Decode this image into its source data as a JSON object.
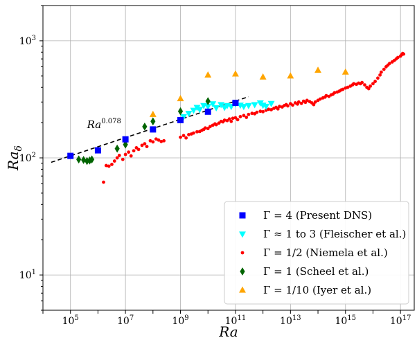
{
  "chart_data": {
    "type": "scatter",
    "xlabel": "Ra",
    "ylabel_main": "Ra",
    "ylabel_sub": "δ",
    "xscale": "log",
    "yscale": "log",
    "xlim": [
      10000.0,
      3.16e+17
    ],
    "ylim": [
      5,
      2000
    ],
    "grid": true,
    "legend_position": "bottom-right",
    "x_ticks": [
      {
        "base": "10",
        "exp": "5",
        "value": 100000.0
      },
      {
        "base": "10",
        "exp": "7",
        "value": 10000000.0
      },
      {
        "base": "10",
        "exp": "9",
        "value": 1000000000.0
      },
      {
        "base": "10",
        "exp": "11",
        "value": 100000000000.0
      },
      {
        "base": "10",
        "exp": "13",
        "value": 10000000000000.0
      },
      {
        "base": "10",
        "exp": "15",
        "value": 1000000000000000.0
      },
      {
        "base": "10",
        "exp": "17",
        "value": 1e+17
      }
    ],
    "y_ticks": [
      {
        "base": "10",
        "exp": "1",
        "value": 10
      },
      {
        "base": "10",
        "exp": "2",
        "value": 100
      },
      {
        "base": "10",
        "exp": "3",
        "value": 1000
      }
    ],
    "fit_line": {
      "label_base": "Ra",
      "label_exp": "0.078",
      "label_x": 400000.0,
      "label_y": 180,
      "x_start": 20000.0,
      "x_end": 300000000000.0,
      "slope": 0.078,
      "ref_x": 100000.0,
      "ref_y": 104,
      "color": "#000000"
    },
    "series": [
      {
        "name": "Γ = 4 (Present DNS)",
        "marker": "square",
        "color": "#0000ff",
        "points": [
          [
            100000.0,
            104
          ],
          [
            1000000.0,
            116
          ],
          [
            10000000.0,
            144
          ],
          [
            100000000.0,
            175
          ],
          [
            1000000000.0,
            210
          ],
          [
            10000000000.0,
            248
          ],
          [
            100000000000.0,
            295
          ]
        ]
      },
      {
        "name": "Γ ≈ 1 to 3 (Fleischer et al.)",
        "marker": "triangle-down",
        "color": "#00ffff",
        "points": [
          [
            1300000000.0,
            225
          ],
          [
            2000000000.0,
            240
          ],
          [
            3000000000.0,
            255
          ],
          [
            4000000000.0,
            270
          ],
          [
            5000000000.0,
            260
          ],
          [
            7000000000.0,
            280
          ],
          [
            10000000000.0,
            275
          ],
          [
            15000000000.0,
            290
          ],
          [
            20000000000.0,
            268
          ],
          [
            30000000000.0,
            285
          ],
          [
            40000000000.0,
            270
          ],
          [
            50000000000.0,
            280
          ],
          [
            70000000000.0,
            275
          ],
          [
            100000000000.0,
            290
          ],
          [
            150000000000.0,
            282
          ],
          [
            200000000000.0,
            275
          ],
          [
            300000000000.0,
            280
          ],
          [
            500000000000.0,
            285
          ],
          [
            800000000000.0,
            295
          ],
          [
            1000000000000.0,
            282
          ],
          [
            1300000000000.0,
            276
          ],
          [
            2000000000000.0,
            292
          ]
        ]
      },
      {
        "name": "Γ = 1/2 (Niemela et al.)",
        "marker": "circle",
        "color": "#ff0000",
        "points": [
          [
            1600000.0,
            62
          ],
          [
            2000000.0,
            86
          ],
          [
            2500000.0,
            85
          ],
          [
            3200000.0,
            88
          ],
          [
            4000000.0,
            94
          ],
          [
            5000000.0,
            100
          ],
          [
            6000000.0,
            105
          ],
          [
            8000000.0,
            97
          ],
          [
            10000000.0,
            107
          ],
          [
            13000000.0,
            112
          ],
          [
            16000000.0,
            104
          ],
          [
            20000000.0,
            115
          ],
          [
            25000000.0,
            122
          ],
          [
            30000000.0,
            118
          ],
          [
            40000000.0,
            128
          ],
          [
            50000000.0,
            132
          ],
          [
            60000000.0,
            125
          ],
          [
            80000000.0,
            140
          ],
          [
            100000000.0,
            137
          ],
          [
            130000000.0,
            145
          ],
          [
            160000000.0,
            142
          ],
          [
            200000000.0,
            138
          ],
          [
            250000000.0,
            140
          ],
          [
            1000000000.0,
            150
          ],
          [
            1300000000.0,
            155
          ],
          [
            1600000000.0,
            148
          ],
          [
            2000000000.0,
            158
          ],
          [
            2500000000.0,
            160
          ],
          [
            3000000000.0,
            163
          ],
          [
            4000000000.0,
            167
          ],
          [
            5000000000.0,
            168
          ],
          [
            6000000000.0,
            172
          ],
          [
            7000000000.0,
            175
          ],
          [
            8000000000.0,
            180
          ],
          [
            10000000000.0,
            178
          ],
          [
            12000000000.0,
            185
          ],
          [
            15000000000.0,
            190
          ],
          [
            18000000000.0,
            195
          ],
          [
            20000000000.0,
            192
          ],
          [
            25000000000.0,
            198
          ],
          [
            30000000000.0,
            205
          ],
          [
            35000000000.0,
            203
          ],
          [
            40000000000.0,
            210
          ],
          [
            50000000000.0,
            208
          ],
          [
            60000000000.0,
            215
          ],
          [
            70000000000.0,
            205
          ],
          [
            80000000000.0,
            218
          ],
          [
            100000000000.0,
            220
          ],
          [
            120000000000.0,
            212
          ],
          [
            150000000000.0,
            225
          ],
          [
            200000000000.0,
            230
          ],
          [
            250000000000.0,
            222
          ],
          [
            300000000000.0,
            235
          ],
          [
            400000000000.0,
            240
          ],
          [
            500000000000.0,
            238
          ],
          [
            600000000000.0,
            245
          ],
          [
            800000000000.0,
            250
          ],
          [
            1000000000000.0,
            248
          ],
          [
            1300000000000.0,
            255
          ],
          [
            1600000000000.0,
            260
          ],
          [
            2000000000000.0,
            258
          ],
          [
            2500000000000.0,
            265
          ],
          [
            3000000000000.0,
            270
          ],
          [
            3500000000000.0,
            262
          ],
          [
            4000000000000.0,
            275
          ],
          [
            5000000000000.0,
            272
          ],
          [
            6000000000000.0,
            280
          ],
          [
            7000000000000.0,
            285
          ],
          [
            8000000000000.0,
            278
          ],
          [
            10000000000000.0,
            290
          ],
          [
            12000000000000.0,
            282
          ],
          [
            15000000000000.0,
            295
          ],
          [
            18000000000000.0,
            288
          ],
          [
            20000000000000.0,
            300
          ],
          [
            25000000000000.0,
            292
          ],
          [
            30000000000000.0,
            305
          ],
          [
            35000000000000.0,
            298
          ],
          [
            40000000000000.0,
            310
          ],
          [
            50000000000000.0,
            302
          ],
          [
            60000000000000.0,
            295
          ],
          [
            70000000000000.0,
            285
          ],
          [
            80000000000000.0,
            300
          ],
          [
            100000000000000.0,
            310
          ],
          [
            120000000000000.0,
            318
          ],
          [
            150000000000000.0,
            325
          ],
          [
            180000000000000.0,
            330
          ],
          [
            200000000000000.0,
            340
          ],
          [
            250000000000000.0,
            335
          ],
          [
            300000000000000.0,
            345
          ],
          [
            350000000000000.0,
            350
          ],
          [
            400000000000000.0,
            360
          ],
          [
            500000000000000.0,
            365
          ],
          [
            600000000000000.0,
            372
          ],
          [
            700000000000000.0,
            380
          ],
          [
            800000000000000.0,
            385
          ],
          [
            1000000000000000.0,
            395
          ],
          [
            1200000000000000.0,
            400
          ],
          [
            1500000000000000.0,
            410
          ],
          [
            1800000000000000.0,
            420
          ],
          [
            2000000000000000.0,
            430
          ],
          [
            2500000000000000.0,
            425
          ],
          [
            3000000000000000.0,
            435
          ],
          [
            3500000000000000.0,
            430
          ],
          [
            4000000000000000.0,
            440
          ],
          [
            5000000000000000.0,
            420
          ],
          [
            6000000000000000.0,
            400
          ],
          [
            7000000000000000.0,
            390
          ],
          [
            8000000000000000.0,
            410
          ],
          [
            1e+16,
            430
          ],
          [
            1.2e+16,
            450
          ],
          [
            1.5e+16,
            480
          ],
          [
            1.8e+16,
            510
          ],
          [
            2e+16,
            540
          ],
          [
            2.5e+16,
            570
          ],
          [
            3e+16,
            600
          ],
          [
            3.5e+16,
            620
          ],
          [
            4e+16,
            640
          ],
          [
            5e+16,
            660
          ],
          [
            6e+16,
            680
          ],
          [
            7e+16,
            700
          ],
          [
            8e+16,
            720
          ],
          [
            1e+17,
            740
          ],
          [
            1.1e+17,
            760
          ],
          [
            1.2e+17,
            780
          ],
          [
            1.3e+17,
            770
          ]
        ]
      },
      {
        "name": "Γ = 1 (Scheel et al.)",
        "marker": "diamond",
        "color": "#006400",
        "points": [
          [
            200000.0,
            97
          ],
          [
            300000.0,
            96
          ],
          [
            400000.0,
            94
          ],
          [
            500000.0,
            95
          ],
          [
            600000.0,
            97
          ],
          [
            5000000.0,
            120
          ],
          [
            10000000.0,
            130
          ],
          [
            10000000.0,
            140
          ],
          [
            50000000.0,
            185
          ],
          [
            100000000.0,
            205
          ],
          [
            1000000000.0,
            250
          ],
          [
            10000000000.0,
            305
          ]
        ]
      },
      {
        "name": "Γ = 1/10 (Iyer et al.)",
        "marker": "triangle-up",
        "color": "#ffa500",
        "points": [
          [
            100000000.0,
            235
          ],
          [
            1000000000.0,
            320
          ],
          [
            10000000000.0,
            510
          ],
          [
            100000000000.0,
            520
          ],
          [
            1000000000000.0,
            490
          ],
          [
            10000000000000.0,
            500
          ],
          [
            100000000000000.0,
            560
          ],
          [
            1000000000000000.0,
            540
          ]
        ]
      }
    ]
  }
}
